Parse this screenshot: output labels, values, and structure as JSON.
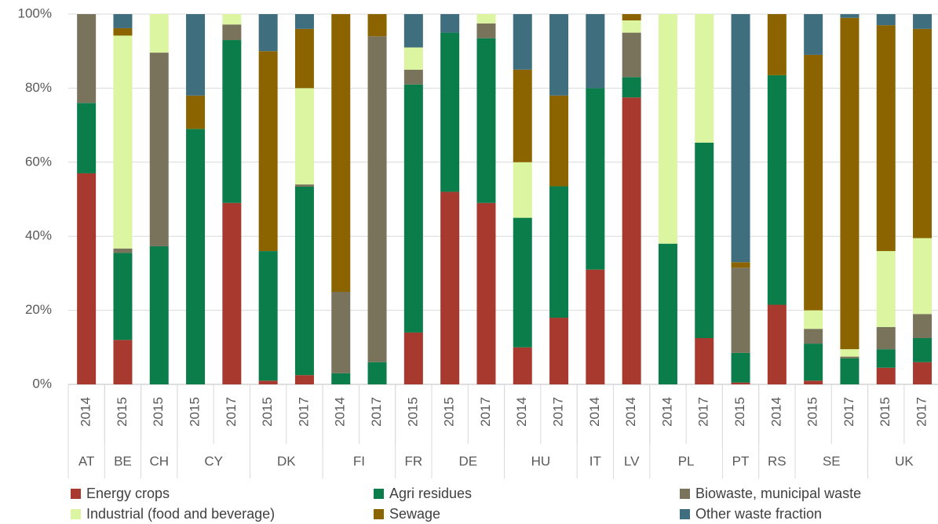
{
  "chart_data": {
    "type": "stacked_bar",
    "categories": [
      "2014",
      "2015",
      "2015",
      "2015",
      "2017",
      "2015",
      "2017",
      "2014",
      "2017",
      "2015",
      "2015",
      "2017",
      "2014",
      "2017",
      "2014",
      "2014",
      "2014",
      "2017",
      "2015",
      "2014",
      "2015",
      "2017",
      "2015",
      "2017"
    ],
    "groups": [
      {
        "label": "AT",
        "count": 1
      },
      {
        "label": "BE",
        "count": 1
      },
      {
        "label": "CH",
        "count": 1
      },
      {
        "label": "CY",
        "count": 2
      },
      {
        "label": "DK",
        "count": 2
      },
      {
        "label": "FI",
        "count": 2
      },
      {
        "label": "FR",
        "count": 1
      },
      {
        "label": "DE",
        "count": 2
      },
      {
        "label": "HU",
        "count": 2
      },
      {
        "label": "IT",
        "count": 1
      },
      {
        "label": "LV",
        "count": 1
      },
      {
        "label": "PL",
        "count": 2
      },
      {
        "label": "PT",
        "count": 1
      },
      {
        "label": "RS",
        "count": 1
      },
      {
        "label": "SE",
        "count": 2
      },
      {
        "label": "UK",
        "count": 2
      }
    ],
    "series": [
      {
        "name": "Energy crops",
        "color": "#a8392f",
        "values": [
          57,
          12,
          0,
          0,
          49,
          1,
          2.5,
          0,
          0,
          14,
          52,
          49,
          10,
          18,
          31,
          77.5,
          0,
          12.5,
          0.5,
          21.5,
          1,
          0,
          4.5,
          6
        ]
      },
      {
        "name": "Agri residues",
        "color": "#0a7d4a",
        "values": [
          19,
          23.5,
          37.3,
          69,
          44,
          35,
          50.9,
          3,
          6,
          67,
          43,
          44.5,
          35,
          35.5,
          49,
          5.5,
          38,
          52.8,
          8,
          62,
          10,
          7,
          5,
          6.5
        ]
      },
      {
        "name": "Biowaste, municipal waste",
        "color": "#7a735c",
        "values": [
          24,
          1.2,
          52.3,
          0,
          4.2,
          0,
          0.6,
          22,
          88,
          4,
          0,
          4,
          0,
          0,
          0,
          12,
          0,
          0,
          23,
          0,
          4,
          0.5,
          6,
          6.5
        ]
      },
      {
        "name": "Industrial (food and beverage)",
        "color": "#dcf5a0",
        "values": [
          0,
          57.5,
          10.4,
          0,
          2.8,
          0,
          26,
          0,
          0,
          6,
          0,
          2.5,
          15,
          0,
          0,
          3.3,
          62,
          34.7,
          0,
          0,
          5,
          2,
          20.5,
          20.5
        ]
      },
      {
        "name": "Sewage",
        "color": "#8b6400",
        "values": [
          0,
          2,
          0,
          9,
          0,
          54,
          16,
          75,
          6,
          0,
          0,
          0,
          25,
          24.5,
          0,
          1.7,
          0,
          0,
          1.5,
          16.5,
          69,
          89.5,
          61,
          56.5
        ]
      },
      {
        "name": "Other waste fraction",
        "color": "#3f6e7e",
        "values": [
          0,
          3.8,
          0,
          22,
          0,
          10,
          4,
          0,
          0,
          9,
          5,
          0,
          15,
          22,
          20,
          0,
          0,
          0,
          67,
          0,
          11,
          1,
          3,
          4
        ]
      }
    ],
    "ylim": [
      0,
      100
    ],
    "yticks": [
      {
        "value": 0,
        "label": "0%"
      },
      {
        "value": 20,
        "label": "20%"
      },
      {
        "value": 40,
        "label": "40%"
      },
      {
        "value": 60,
        "label": "60%"
      },
      {
        "value": 80,
        "label": "80%"
      },
      {
        "value": 100,
        "label": "100%"
      }
    ],
    "grid": true,
    "legend": "bottom"
  }
}
